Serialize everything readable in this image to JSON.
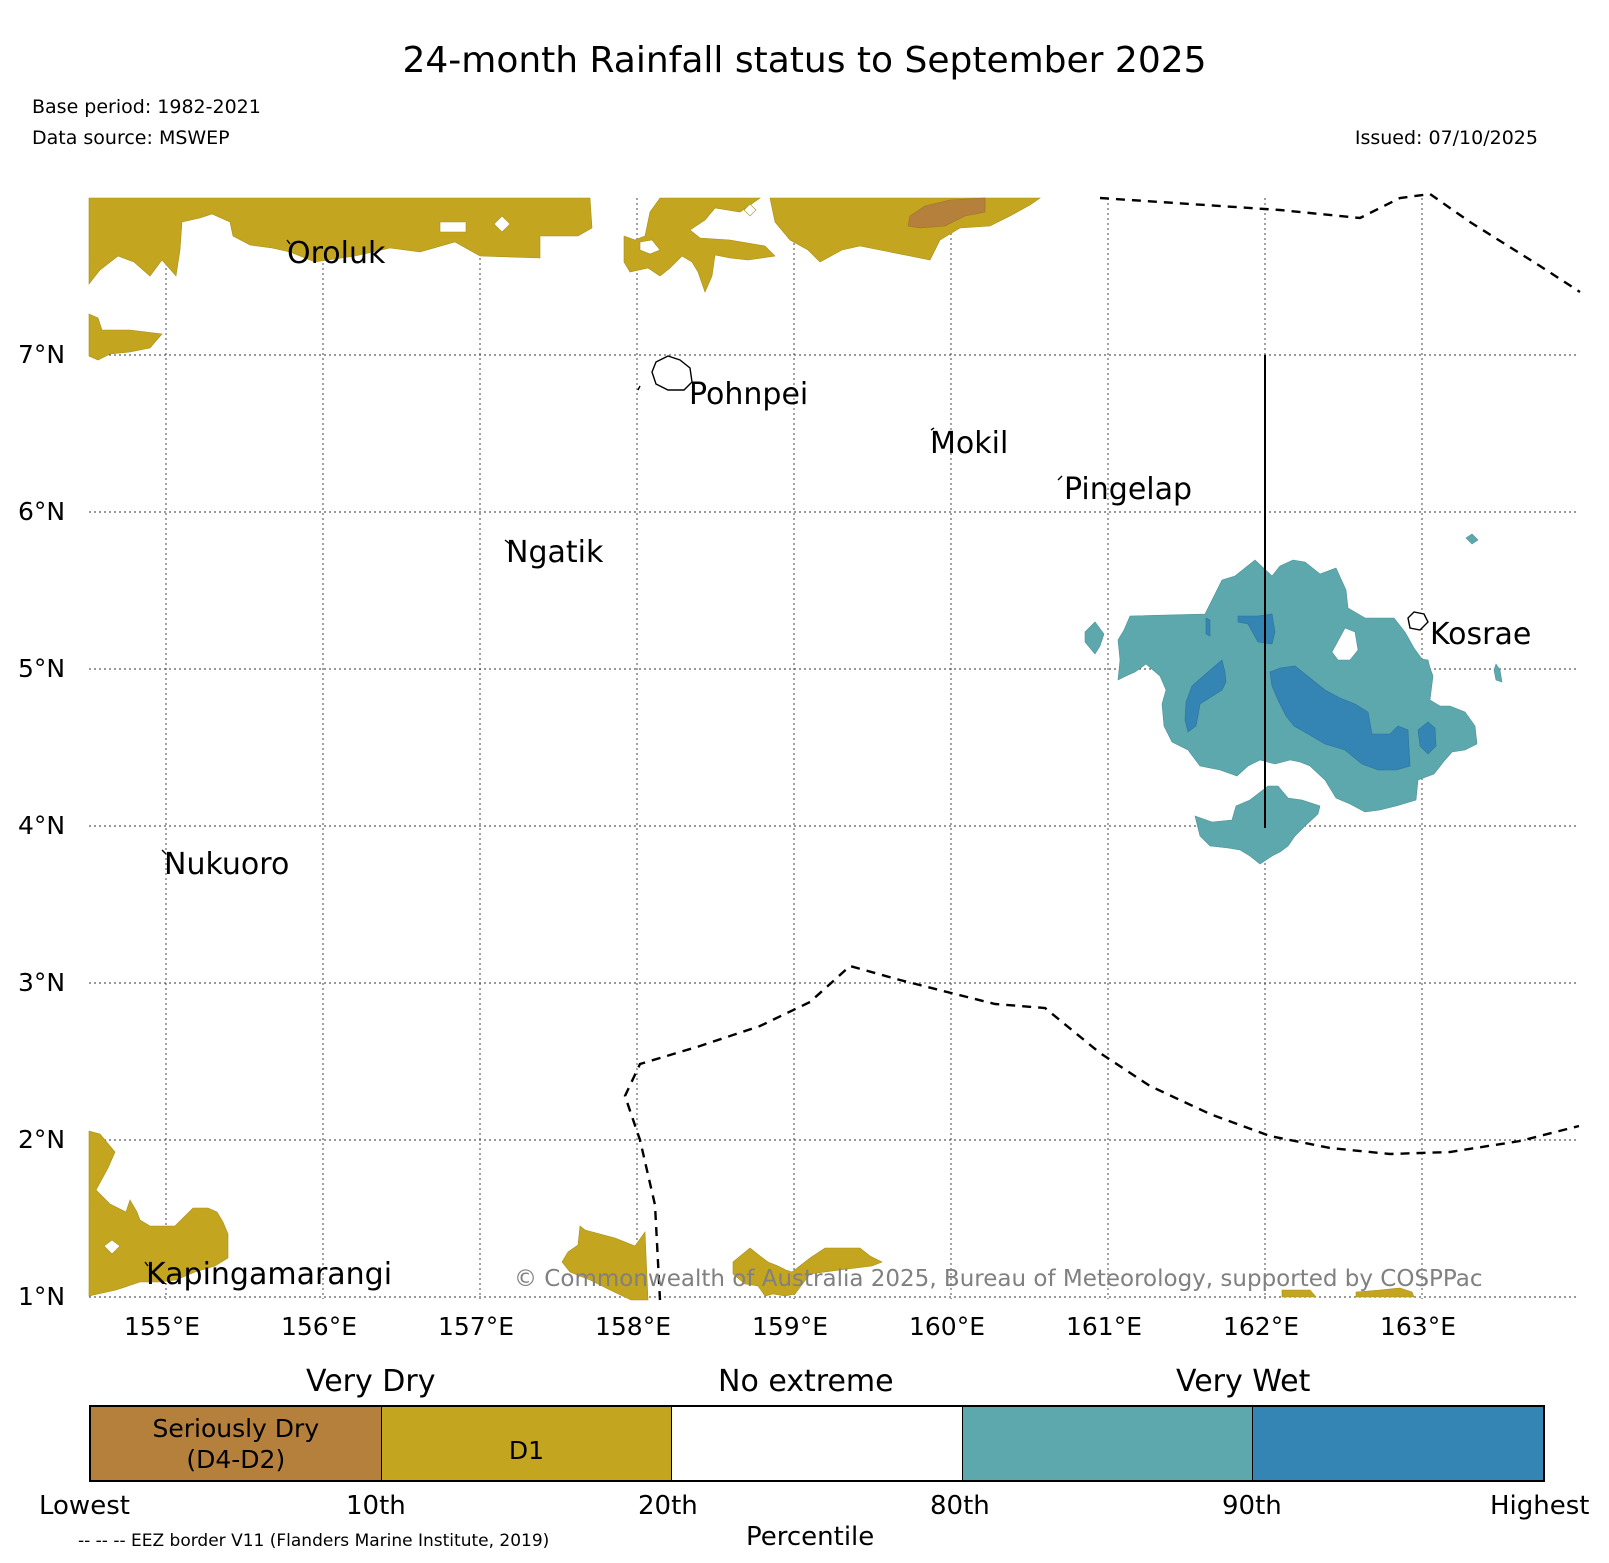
{
  "title": "24-month Rainfall status to September 2025",
  "meta": {
    "base_period": "Base period: 1982-2021",
    "data_source": "Data source: MSWEP",
    "issued": "Issued: 07/10/2025"
  },
  "map": {
    "lon_range": [
      154.5,
      164.0
    ],
    "lat_range": [
      1.0,
      8.0
    ],
    "lon_ticks": [
      "155°E",
      "156°E",
      "157°E",
      "158°E",
      "159°E",
      "160°E",
      "161°E",
      "162°E",
      "163°E"
    ],
    "lat_ticks": [
      "1°N",
      "2°N",
      "3°N",
      "4°N",
      "5°N",
      "6°N",
      "7°N"
    ],
    "places": [
      {
        "name": "Oroluk",
        "lon": 155.7,
        "lat": 7.63
      },
      {
        "name": "Pohnpei",
        "lon": 158.2,
        "lat": 6.88
      },
      {
        "name": "Mokil",
        "lon": 159.8,
        "lat": 6.68
      },
      {
        "name": "Pingelap",
        "lon": 160.7,
        "lat": 6.21
      },
      {
        "name": "Ngatik",
        "lon": 157.15,
        "lat": 5.82
      },
      {
        "name": "Kosrae",
        "lon": 162.95,
        "lat": 5.33
      },
      {
        "name": "Nukuoro",
        "lon": 154.95,
        "lat": 3.85
      },
      {
        "name": "Kapingamarangi",
        "lon": 154.8,
        "lat": 1.07
      }
    ],
    "copyright": "© Commonwealth of Australia 2025, Bureau of Meteorology, supported by COSPPac"
  },
  "legend": {
    "headers": [
      "Very Dry",
      "No extreme",
      "Very Wet"
    ],
    "categories": [
      {
        "label": "Seriously Dry\n(D4-D2)",
        "color": "#b5803c"
      },
      {
        "label": "D1",
        "color": "#c3a520"
      },
      {
        "label": "",
        "color": "#ffffff"
      },
      {
        "label": "",
        "color": "#5da8ad"
      },
      {
        "label": "",
        "color": "#3484b4"
      }
    ],
    "percentiles": [
      "Lowest",
      "10th",
      "20th",
      "80th",
      "90th",
      "Highest"
    ],
    "axis_label": "Percentile",
    "eez_note": "-- -- -- EEZ border V11 (Flanders Marine Institute, 2019)"
  },
  "colors": {
    "seriously_dry": "#b5803c",
    "very_dry": "#c3a520",
    "very_wet": "#5da8ad",
    "very_wet_high": "#3484b4"
  }
}
